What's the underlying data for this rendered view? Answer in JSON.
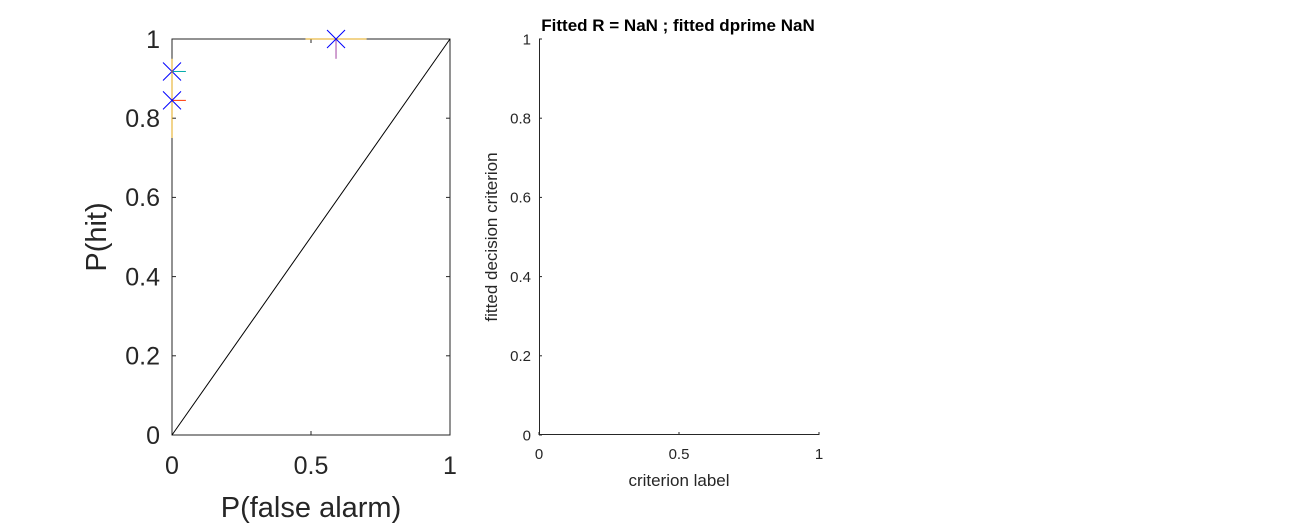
{
  "chart_data": [
    {
      "type": "scatter",
      "title": "",
      "xlabel": "P(false alarm)",
      "ylabel": "P(hit)",
      "xlim": [
        0,
        1
      ],
      "ylim": [
        0,
        1
      ],
      "xticks": [
        0,
        0.5,
        1
      ],
      "yticks": [
        0,
        0.2,
        0.4,
        0.6,
        0.8,
        1
      ],
      "xtick_labels": [
        "0",
        "0.5",
        "1"
      ],
      "ytick_labels": [
        "0",
        "0.2",
        "0.4",
        "0.6",
        "0.8",
        "1"
      ],
      "grid": false,
      "reference_line": {
        "x": [
          0,
          1
        ],
        "y": [
          0,
          1
        ],
        "color": "#000000"
      },
      "series": [
        {
          "x": [
            0.0
          ],
          "y": [
            0.918
          ],
          "marker": "x",
          "color": "#0000ff",
          "errorbars": [
            {
              "axis": "x",
              "from": 0.0,
              "to": 0.05,
              "color": "#00aaaa"
            }
          ]
        },
        {
          "x": [
            0.0
          ],
          "y": [
            0.845
          ],
          "marker": "x",
          "color": "#0000ff",
          "errorbars": [
            {
              "axis": "x",
              "from": 0.0,
              "to": 0.05,
              "color": "#ff3300"
            },
            {
              "axis": "y",
              "from": 0.75,
              "to": 0.95,
              "color": "#e6a817"
            }
          ]
        },
        {
          "x": [
            0.59
          ],
          "y": [
            1.0
          ],
          "marker": "x",
          "color": "#0000ff",
          "errorbars": [
            {
              "axis": "x",
              "from": 0.48,
              "to": 0.7,
              "color": "#e6a817"
            },
            {
              "axis": "y",
              "from": 0.95,
              "to": 1.0,
              "color": "#a040a0"
            }
          ]
        }
      ]
    },
    {
      "type": "scatter",
      "title": "Fitted R = NaN ; fitted dprime NaN",
      "xlabel": "criterion label",
      "ylabel": "fitted decision criterion",
      "xlim": [
        0,
        1
      ],
      "ylim": [
        0,
        1
      ],
      "xticks": [
        0,
        0.5,
        1
      ],
      "yticks": [
        0,
        0.2,
        0.4,
        0.6,
        0.8,
        1
      ],
      "xtick_labels": [
        "0",
        "0.5",
        "1"
      ],
      "ytick_labels": [
        "0",
        "0.2",
        "0.4",
        "0.6",
        "0.8",
        "1"
      ],
      "grid": false,
      "series": []
    }
  ]
}
